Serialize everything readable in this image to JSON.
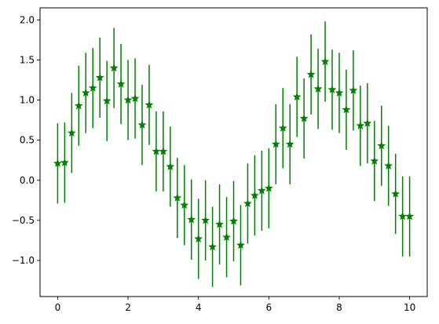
{
  "chart_data": {
    "type": "scatter",
    "title": "",
    "xlabel": "",
    "ylabel": "",
    "xlim": [
      -0.5,
      10.5
    ],
    "ylim": [
      -1.45,
      2.15
    ],
    "grid": false,
    "x_ticks": [
      "0",
      "2",
      "4",
      "6",
      "8",
      "10"
    ],
    "y_ticks": [
      "−1.0",
      "−0.5",
      "0.0",
      "0.5",
      "1.0",
      "1.5",
      "2.0"
    ],
    "series": [
      {
        "color": "#008000",
        "marker": "star",
        "x": [
          0.0,
          0.2,
          0.4,
          0.6,
          0.8,
          1.0,
          1.2,
          1.4,
          1.6,
          1.8,
          2.0,
          2.2,
          2.4,
          2.6,
          2.8,
          3.0,
          3.2,
          3.4,
          3.6,
          3.8,
          4.0,
          4.2,
          4.4,
          4.6,
          4.8,
          5.0,
          5.2,
          5.4,
          5.6,
          5.8,
          6.0,
          6.2,
          6.4,
          6.6,
          6.8,
          7.0,
          7.2,
          7.4,
          7.6,
          7.8,
          8.0,
          8.2,
          8.4,
          8.6,
          8.8,
          9.0,
          9.2,
          9.4,
          9.6,
          9.8,
          10.0
        ],
        "y": [
          0.21,
          0.22,
          0.59,
          0.93,
          1.09,
          1.15,
          1.28,
          0.99,
          1.4,
          1.2,
          1.0,
          1.02,
          0.69,
          0.94,
          0.36,
          0.36,
          0.17,
          -0.22,
          -0.31,
          -0.49,
          -0.73,
          -0.5,
          -0.83,
          -0.55,
          -0.71,
          -0.51,
          -0.81,
          -0.29,
          -0.19,
          -0.13,
          -0.1,
          0.45,
          0.65,
          0.45,
          1.04,
          0.77,
          1.32,
          1.14,
          1.48,
          1.13,
          1.09,
          0.88,
          1.12,
          0.68,
          0.71,
          0.24,
          0.43,
          0.18,
          -0.17,
          -0.45,
          -0.45
        ],
        "yerr": 0.5
      }
    ]
  }
}
